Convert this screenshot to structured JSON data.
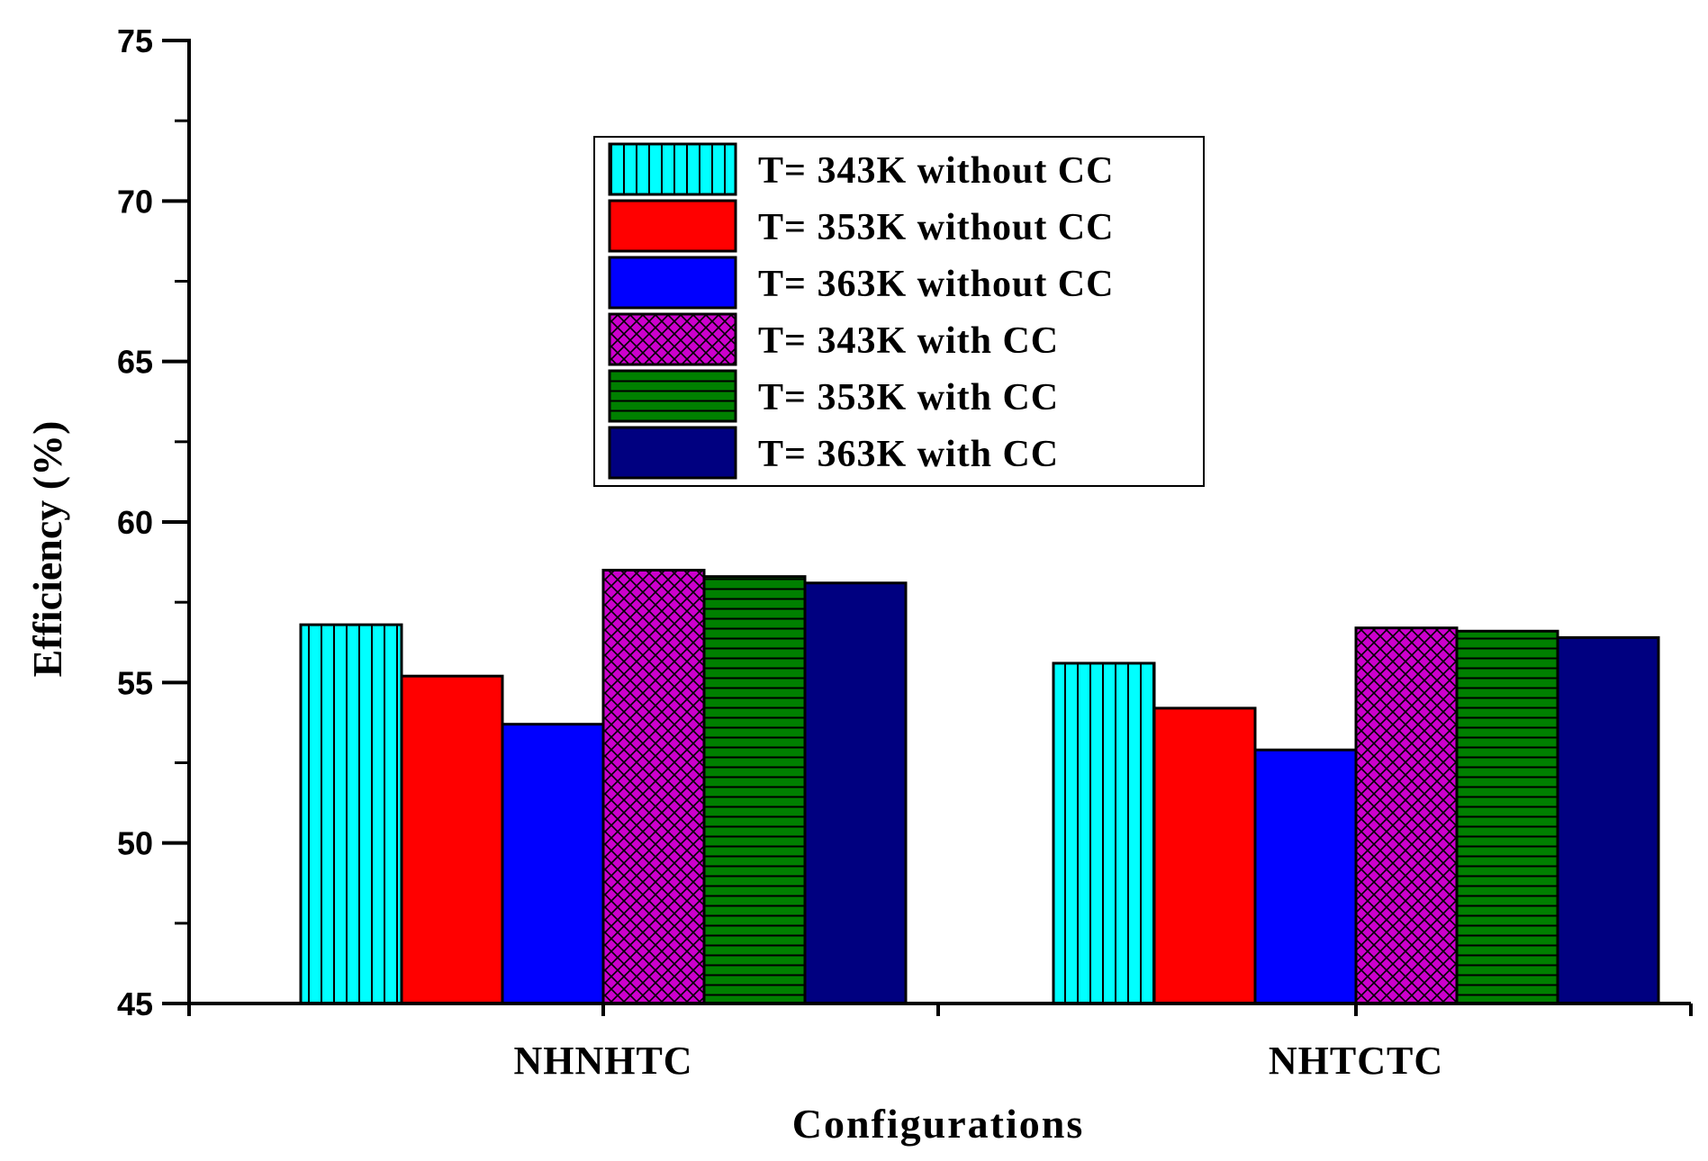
{
  "chart_data": {
    "type": "bar",
    "title": "",
    "xlabel": "Configurations",
    "ylabel": "Efficiency (%)",
    "ylim": [
      45,
      75
    ],
    "yticks": [
      45,
      50,
      55,
      60,
      65,
      70,
      75
    ],
    "categories": [
      "NHNHTC",
      "NHTCTC"
    ],
    "legend_position": "top-center",
    "series": [
      {
        "name": "T= 343K without CC",
        "values": [
          56.8,
          55.6
        ],
        "color": "#00FFFF",
        "pattern": "vertical"
      },
      {
        "name": "T= 353K without CC",
        "values": [
          55.2,
          54.2
        ],
        "color": "#FF0000",
        "pattern": "none"
      },
      {
        "name": "T= 363K without CC",
        "values": [
          53.7,
          52.9
        ],
        "color": "#0000FF",
        "pattern": "none"
      },
      {
        "name": "T= 343K with CC",
        "values": [
          58.5,
          56.7
        ],
        "color": "#CC00CC",
        "pattern": "crosshatch"
      },
      {
        "name": "T= 353K with CC",
        "values": [
          58.3,
          56.6
        ],
        "color": "#008000",
        "pattern": "horizontal"
      },
      {
        "name": "T= 363K with CC",
        "values": [
          58.1,
          56.4
        ],
        "color": "#000080",
        "pattern": "none"
      }
    ]
  }
}
